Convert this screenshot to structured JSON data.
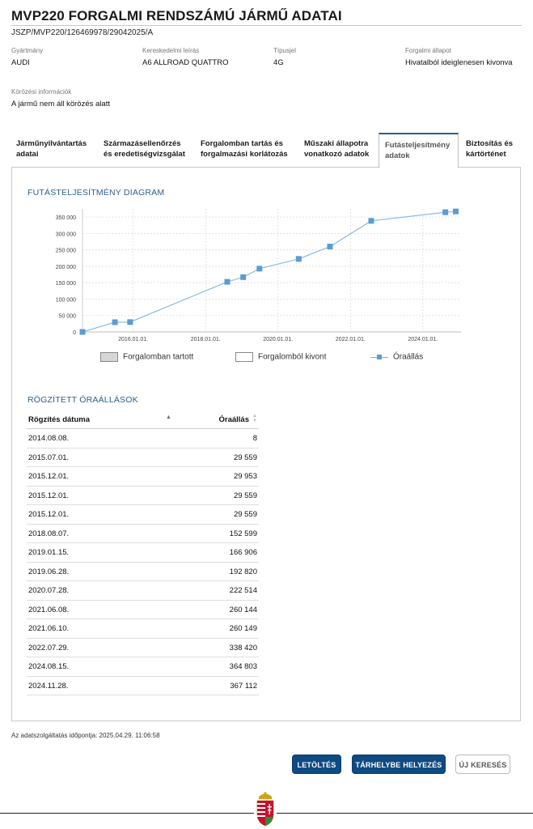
{
  "header": {
    "title": "MVP220 FORGALMI RENDSZÁMÚ JÁRMŰ ADATAI",
    "doc_id": "JSZP/MVP220/126469978/29042025/A"
  },
  "vehicle": {
    "fields": [
      {
        "label": "Gyártmány",
        "value": "AUDI"
      },
      {
        "label": "Kereskedelmi leírás",
        "value": "A6 ALLROAD QUATTRO"
      },
      {
        "label": "Típusjel",
        "value": "4G"
      },
      {
        "label": "Forgalmi állapot",
        "value": "Hivatalból ideiglenesen kivonva"
      }
    ],
    "wanted": {
      "label": "Körözési információk",
      "value": "A jármű nem áll körözés alatt"
    }
  },
  "tabs": [
    {
      "line1": "Járműnyilvántartás",
      "line2": "adatai"
    },
    {
      "line1": "Származásellenőrzés",
      "line2": "és eredetiségvizsgálat"
    },
    {
      "line1": "Forgalomban tartás és",
      "line2": "forgalmazási korlátozás"
    },
    {
      "line1": "Műszaki állapotra",
      "line2": "vonatkozó adatok"
    },
    {
      "line1": "Futásteljesítmény",
      "line2": "adatok"
    },
    {
      "line1": "Biztosítás és",
      "line2": "kártörténet"
    }
  ],
  "active_tab": 4,
  "chart_section": {
    "title": "FUTÁSTELJESÍTMÉNY DIAGRAM"
  },
  "chart_data": {
    "type": "line",
    "title": "",
    "xlabel": "",
    "ylabel": "",
    "x_type": "date",
    "xlim": [
      "2014.08.08.",
      "2025.01.20."
    ],
    "ylim": [
      0,
      375000
    ],
    "y_ticks": [
      0,
      50000,
      100000,
      150000,
      200000,
      250000,
      300000,
      350000
    ],
    "y_tick_labels": [
      "0",
      "50 000",
      "100 000",
      "150 000",
      "200 000",
      "250 000",
      "300 000",
      "350 000"
    ],
    "x_ticks": [
      "2016-01-01",
      "2018-01-01",
      "2020-01-01",
      "2022-01-01",
      "2024-01-01"
    ],
    "x_tick_labels": [
      "2016.01.01.",
      "2018.01.01.",
      "2020.01.01.",
      "2022.01.01.",
      "2024.01.01."
    ],
    "grid": true,
    "legend_position": "bottom",
    "series": [
      {
        "name": "Óraállás",
        "color": "#5b9bd5",
        "x": [
          "2014-08-08",
          "2015-07-01",
          "2015-12-01",
          "2018-08-07",
          "2019-01-15",
          "2019-06-28",
          "2020-07-28",
          "2021-06-08",
          "2022-07-29",
          "2024-08-15",
          "2024-11-28"
        ],
        "y": [
          8,
          29559,
          29953,
          152599,
          166906,
          192820,
          222514,
          260144,
          338420,
          364803,
          367112
        ]
      }
    ],
    "legend": [
      {
        "label": "Forgalomban tartott",
        "kind": "box",
        "color": "#d6d6d6"
      },
      {
        "label": "Forgalomból kivont",
        "kind": "box",
        "color": "#ffffff"
      },
      {
        "label": "Óraállás",
        "kind": "line",
        "color": "#5b9bd5"
      }
    ]
  },
  "readings_section": {
    "title": "RÖGZÍTETT ÓRAÁLLÁSOK",
    "columns": [
      "Rögzítés dátuma",
      "Óraállás"
    ],
    "rows": [
      {
        "date": "2014.08.08.",
        "value": "8"
      },
      {
        "date": "2015.07.01.",
        "value": "29 559"
      },
      {
        "date": "2015.12.01.",
        "value": "29 953"
      },
      {
        "date": "2015.12.01.",
        "value": "29 559"
      },
      {
        "date": "2015.12.01.",
        "value": "29 559"
      },
      {
        "date": "2018.08.07.",
        "value": "152 599"
      },
      {
        "date": "2019.01.15.",
        "value": "166 906"
      },
      {
        "date": "2019.06.28.",
        "value": "192 820"
      },
      {
        "date": "2020.07.28.",
        "value": "222 514"
      },
      {
        "date": "2021.06.08.",
        "value": "260 144"
      },
      {
        "date": "2021.06.10.",
        "value": "260 149"
      },
      {
        "date": "2022.07.29.",
        "value": "338 420"
      },
      {
        "date": "2024.08.15.",
        "value": "364 803"
      },
      {
        "date": "2024.11.28.",
        "value": "367 112"
      }
    ]
  },
  "footnote": "Az adatszolgáltatás időpontja: 2025.04.29. 11:06:58",
  "buttons": {
    "download": "LETÖLTÉS",
    "storage": "TÁRHELYBE HELYEZÉS",
    "new_search": "ÚJ KERESÉS"
  },
  "colors": {
    "primary_button": "#0f4a82",
    "section_title": "#2d5f88",
    "series_line": "#5b9bd5",
    "active_tab_accent": "#2a5d8a"
  },
  "icons": {
    "footer": "hungarian-coat-of-arms-icon"
  }
}
